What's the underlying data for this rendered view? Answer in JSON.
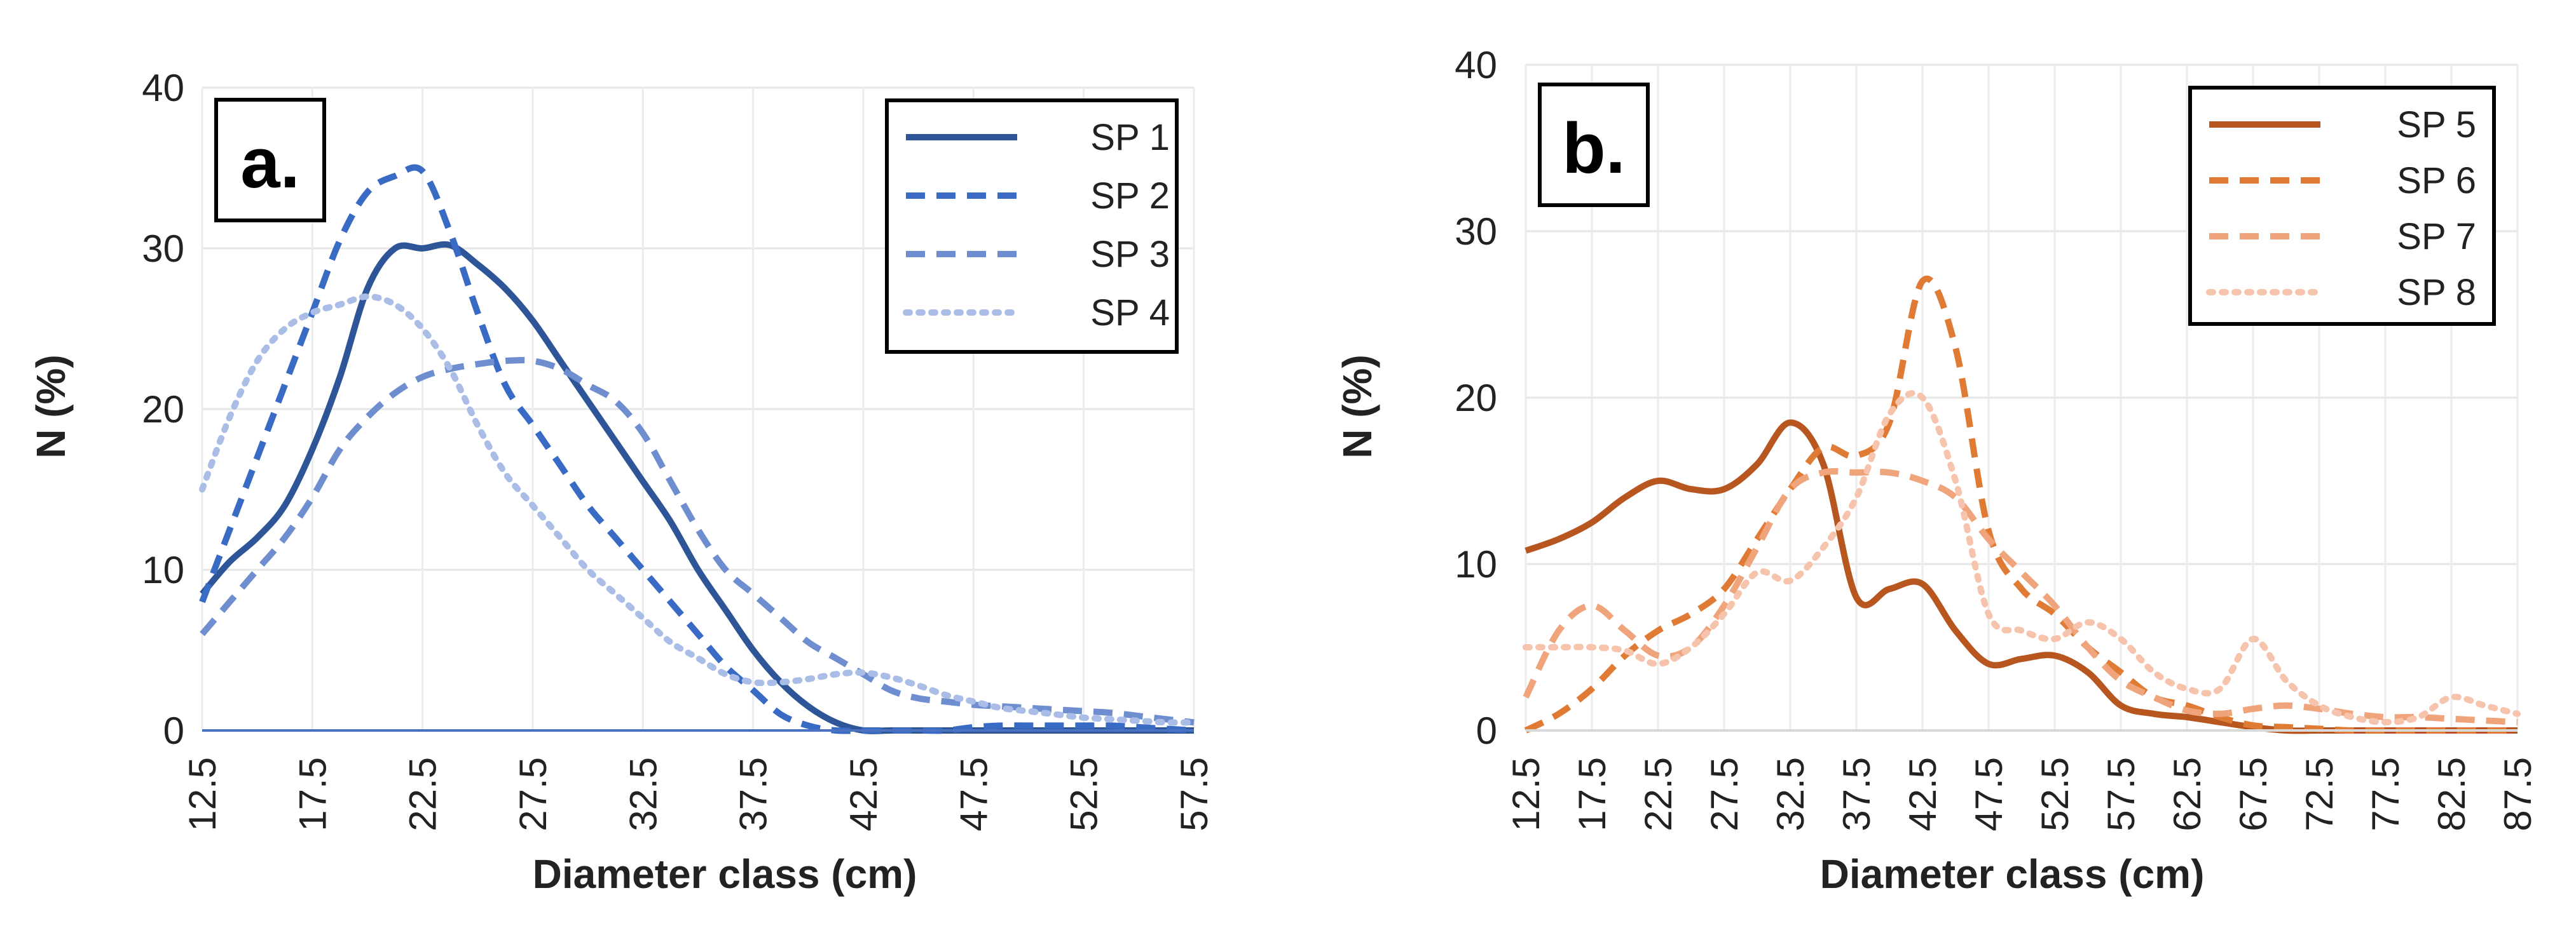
{
  "chart_data": [
    {
      "type": "line",
      "panel_label": "a.",
      "xlabel": "Diameter class (cm)",
      "ylabel": "N (%)",
      "ylim": [
        0,
        40
      ],
      "yticks": [
        "0",
        "10",
        "20",
        "30",
        "40"
      ],
      "categories": [
        "12.5",
        "13.75",
        "15",
        "16.25",
        "17.5",
        "18.75",
        "20",
        "21.25",
        "22.5",
        "23.75",
        "25",
        "26.25",
        "27.5",
        "28.75",
        "30",
        "31.25",
        "32.5",
        "33.75",
        "35",
        "36.25",
        "37.5",
        "38.75",
        "40",
        "41.25",
        "42.5",
        "43.75",
        "45",
        "46.25",
        "47.5",
        "48.75",
        "50",
        "51.25",
        "52.5",
        "53.75",
        "55",
        "56.25",
        "57.5"
      ],
      "tick_labels": [
        "12.5",
        "17.5",
        "22.5",
        "27.5",
        "32.5",
        "37.5",
        "42.5",
        "47.5",
        "52.5",
        "57.5"
      ],
      "grid": true,
      "legend": "top-right",
      "series": [
        {
          "name": "SP 1",
          "color": "#2e5597",
          "dash": "solid",
          "values": [
            8.5,
            10.5,
            12.0,
            14.0,
            17.5,
            22.0,
            27.5,
            30.0,
            30.0,
            30.2,
            29.0,
            27.5,
            25.5,
            23.0,
            20.5,
            18.0,
            15.5,
            13.0,
            10.0,
            7.5,
            5.0,
            3.0,
            1.5,
            0.5,
            0,
            0,
            0,
            0,
            0,
            0,
            0,
            0,
            0,
            0,
            0,
            0,
            0
          ]
        },
        {
          "name": "SP 2",
          "color": "#3a6bc4",
          "dash": "dash",
          "values": [
            8.0,
            12.5,
            17.0,
            21.5,
            26.0,
            30.5,
            33.5,
            34.5,
            34.8,
            31.0,
            26.0,
            21.5,
            19.0,
            16.5,
            14.0,
            12.0,
            10.0,
            8.0,
            6.0,
            4.0,
            2.5,
            1.0,
            0.3,
            0,
            0,
            0,
            0,
            0,
            0.2,
            0.3,
            0.3,
            0.3,
            0.3,
            0.3,
            0.2,
            0.1,
            0
          ]
        },
        {
          "name": "SP 3",
          "color": "#6f8ed0",
          "dash": "dash",
          "values": [
            6.0,
            8.0,
            10.0,
            12.0,
            14.5,
            17.5,
            19.5,
            21.0,
            22.0,
            22.5,
            22.8,
            23.0,
            23.0,
            22.5,
            21.5,
            20.5,
            18.5,
            15.5,
            12.5,
            10.0,
            8.5,
            7.0,
            5.5,
            4.5,
            3.5,
            2.5,
            2.0,
            1.8,
            1.6,
            1.5,
            1.4,
            1.3,
            1.2,
            1.1,
            0.9,
            0.7,
            0.5
          ]
        },
        {
          "name": "SP 4",
          "color": "#a9bde6",
          "dash": "dot",
          "values": [
            15.0,
            19.5,
            23.0,
            25.0,
            26.0,
            26.5,
            27.0,
            26.5,
            25.0,
            22.5,
            19.0,
            16.0,
            14.0,
            12.0,
            10.0,
            8.5,
            7.0,
            5.5,
            4.5,
            3.5,
            3.0,
            3.0,
            3.2,
            3.5,
            3.6,
            3.3,
            2.8,
            2.2,
            1.8,
            1.4,
            1.2,
            1.0,
            0.8,
            0.7,
            0.6,
            0.5,
            0.5
          ]
        }
      ]
    },
    {
      "type": "line",
      "panel_label": "b.",
      "xlabel": "Diameter class (cm)",
      "ylabel": "N (%)",
      "ylim": [
        0,
        40
      ],
      "yticks": [
        "0",
        "10",
        "20",
        "30",
        "40"
      ],
      "categories": [
        "12.5",
        "15",
        "17.5",
        "20",
        "22.5",
        "25",
        "27.5",
        "30",
        "32.5",
        "35",
        "37.5",
        "40",
        "42.5",
        "45",
        "47.5",
        "50",
        "52.5",
        "55",
        "57.5",
        "60",
        "62.5",
        "65",
        "67.5",
        "70",
        "72.5",
        "75",
        "77.5",
        "80",
        "82.5",
        "85",
        "87.5"
      ],
      "tick_labels": [
        "12.5",
        "17.5",
        "22.5",
        "27.5",
        "32.5",
        "37.5",
        "42.5",
        "47.5",
        "52.5",
        "57.5",
        "62.5",
        "67.5",
        "72.5",
        "77.5",
        "82.5",
        "87.5"
      ],
      "grid": true,
      "legend": "top-right",
      "series": [
        {
          "name": "SP 5",
          "color": "#b7561f",
          "dash": "solid",
          "values": [
            10.8,
            11.5,
            12.5,
            14.0,
            15.0,
            14.5,
            14.5,
            16.0,
            18.5,
            16.0,
            8.0,
            8.5,
            8.8,
            6.0,
            4.0,
            4.3,
            4.5,
            3.5,
            1.5,
            1.0,
            0.8,
            0.5,
            0.2,
            0,
            0,
            0,
            0,
            0,
            0,
            0,
            0
          ]
        },
        {
          "name": "SP 6",
          "color": "#e07b35",
          "dash": "dash",
          "values": [
            0,
            1.0,
            2.5,
            4.5,
            6.0,
            7.0,
            8.5,
            11.5,
            14.5,
            17.0,
            16.5,
            18.5,
            27.0,
            23.0,
            12.0,
            8.5,
            7.0,
            5.0,
            3.5,
            2.0,
            1.5,
            0.8,
            0.3,
            0.2,
            0.1,
            0,
            0,
            0,
            0,
            0,
            0
          ]
        },
        {
          "name": "SP 7",
          "color": "#f0a47b",
          "dash": "dash",
          "values": [
            2.0,
            6.0,
            7.5,
            6.0,
            4.5,
            5.0,
            7.5,
            11.0,
            14.5,
            15.5,
            15.5,
            15.5,
            15.0,
            14.0,
            11.5,
            9.5,
            7.5,
            5.0,
            3.0,
            2.0,
            1.2,
            1.0,
            1.3,
            1.5,
            1.3,
            1.0,
            0.8,
            0.8,
            0.7,
            0.6,
            0.5
          ]
        },
        {
          "name": "SP 8",
          "color": "#f6c4ad",
          "dash": "dot",
          "values": [
            5.0,
            5.0,
            5.0,
            4.8,
            4.0,
            5.0,
            7.0,
            9.5,
            9.0,
            11.0,
            14.0,
            19.0,
            20.0,
            15.0,
            7.0,
            6.0,
            5.5,
            6.5,
            5.5,
            3.5,
            2.5,
            2.5,
            5.5,
            3.0,
            1.5,
            0.8,
            0.5,
            0.8,
            2.0,
            1.5,
            1.0
          ]
        }
      ]
    }
  ]
}
